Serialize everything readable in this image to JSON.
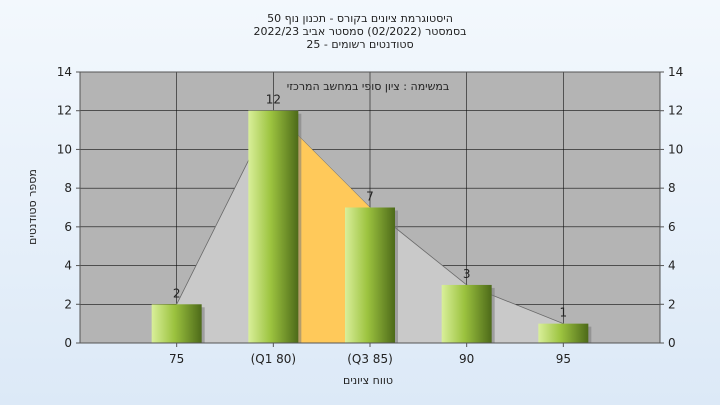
{
  "chart_data": {
    "type": "bar",
    "title_lines": [
      "היסטוגרמת ציונים בקורס - תכנון נוף 50",
      "בסמסטר  (02/2022)  סמסטר אביב 2022/23",
      "סטודנטים רשומים - 25"
    ],
    "annotation": "במשימה : ציון סופי במחשב המרכזי",
    "xlabel": "טווח ציונים",
    "ylabel": "מספר סטודנטים",
    "categories": [
      "75",
      "(Q1 80)",
      "(Q3 85)",
      "90",
      "95"
    ],
    "values": [
      2,
      12,
      7,
      3,
      1
    ],
    "ylim": [
      0,
      14
    ],
    "yticks": [
      0,
      2,
      4,
      6,
      8,
      10,
      12,
      14
    ],
    "grid": true,
    "colors": {
      "plot_bg": "#b4b4b4",
      "bar_light": "#d9ef9a",
      "bar_mid": "#9cc33f",
      "bar_dark": "#4d6a19",
      "quartile_fill": "#ffc95a",
      "distribution_fill": "#c9c9c9"
    }
  }
}
